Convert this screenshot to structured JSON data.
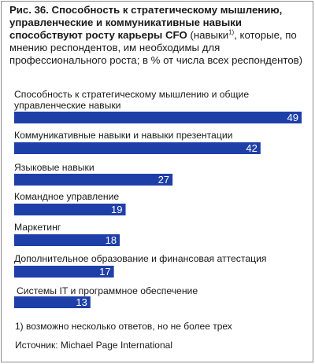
{
  "title": {
    "bold": "Рис. 36. Способность к стратегическому мышлению, управленческие и коммуникативные навыки способствуют росту карьеры CFO",
    "rest": " (навыки",
    "note_ref": "1)",
    "rest2": ", которые, по мнению респондентов, им необходимы для профессионального роста; в % от числа всех респондентов)"
  },
  "chart_data": {
    "type": "bar",
    "orientation": "horizontal",
    "categories": [
      "Способность к стратегическому мышлению и общие управленческие навыки",
      "Коммуникативные навыки и навыки презентации",
      "Языковые навыки",
      "Командное управление",
      "Маркетинг",
      "Дополнительное образование и финансовая аттестация",
      "Системы IT и программное обеспечение"
    ],
    "values": [
      49,
      42,
      27,
      19,
      18,
      17,
      13
    ],
    "xlim": [
      0,
      49
    ],
    "bar_color": "#1f3fa8",
    "label_color": "#ffffff",
    "grid": false
  },
  "footnote": "1)  возможно несколько ответов, но не более трех",
  "source": "Источник: Michael Page International"
}
